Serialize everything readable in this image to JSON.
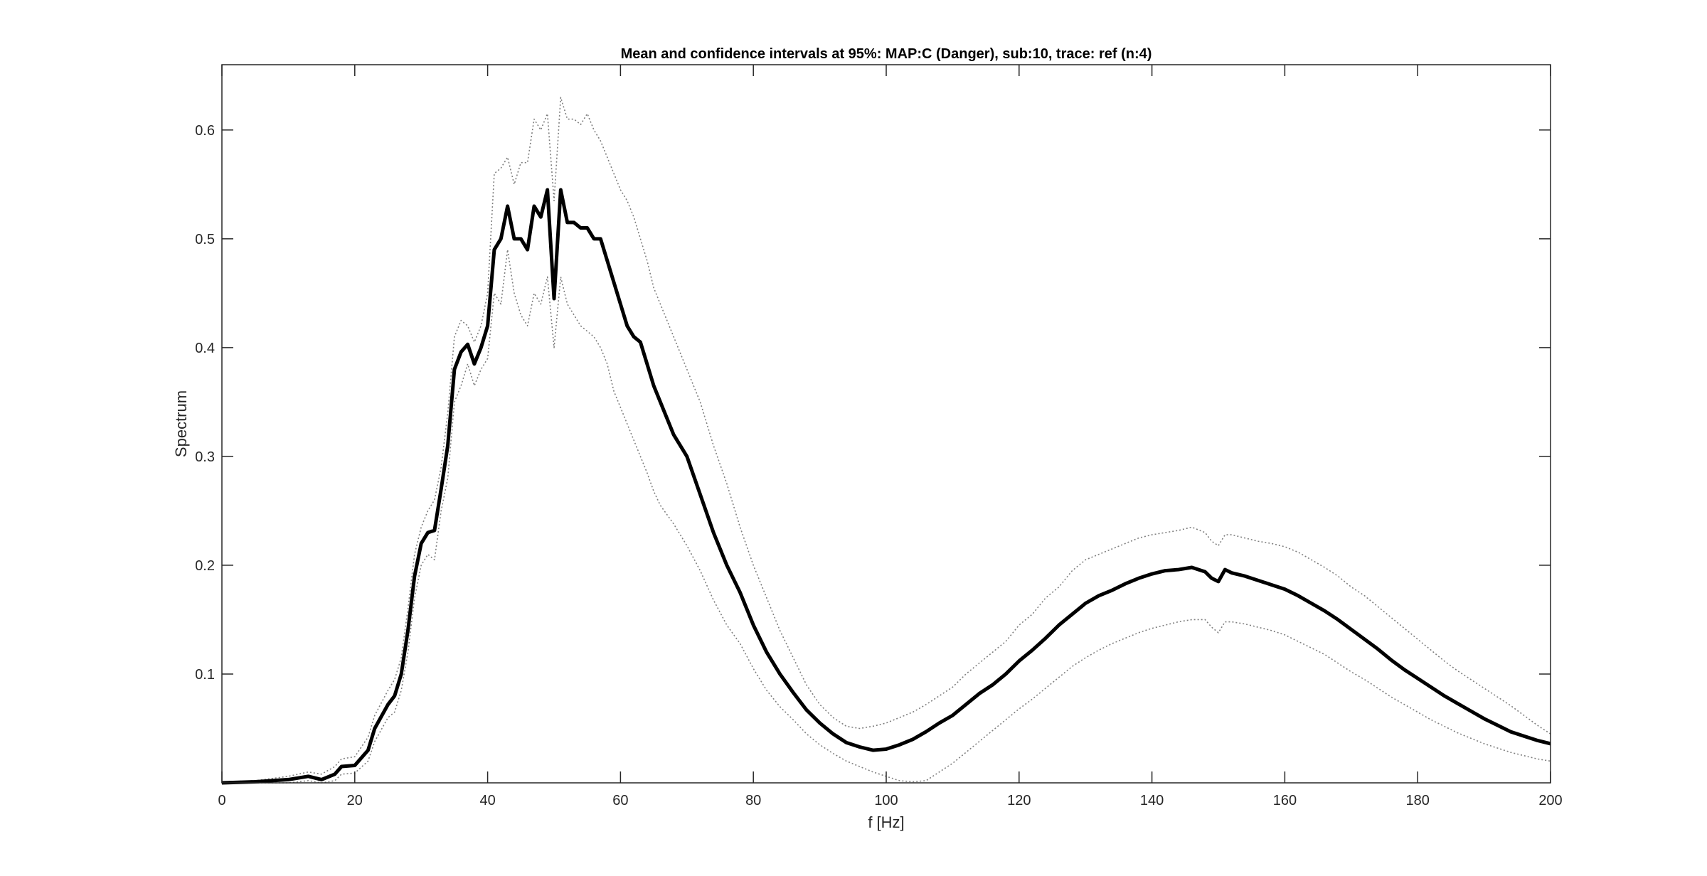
{
  "chart_data": {
    "type": "line",
    "title": "Mean and confidence intervals at 95%: MAP:C (Danger), sub:10, trace: ref (n:4)",
    "xlabel": "f [Hz]",
    "ylabel": "Spectrum",
    "xlim": [
      0,
      200
    ],
    "ylim": [
      0,
      0.66
    ],
    "x_ticks": [
      0,
      20,
      40,
      60,
      80,
      100,
      120,
      140,
      160,
      180,
      200
    ],
    "y_ticks": [
      0.1,
      0.2,
      0.3,
      0.4,
      0.5,
      0.6
    ],
    "x_tick_labels": [
      "0",
      "20",
      "40",
      "60",
      "80",
      "100",
      "120",
      "140",
      "160",
      "180",
      "200"
    ],
    "y_tick_labels": [
      "0.1",
      "0.2",
      "0.3",
      "0.4",
      "0.5",
      "0.6"
    ],
    "grid": false,
    "box": true,
    "x": [
      0,
      5,
      10,
      13,
      15,
      17,
      18,
      20,
      22,
      23,
      25,
      26,
      27,
      28,
      29,
      30,
      31,
      32,
      33,
      34,
      35,
      36,
      37,
      38,
      39,
      40,
      41,
      42,
      43,
      44,
      45,
      46,
      47,
      48,
      49,
      50,
      51,
      52,
      53,
      54,
      55,
      56,
      57,
      58,
      59,
      60,
      61,
      62,
      63,
      64,
      65,
      66,
      68,
      70,
      72,
      74,
      76,
      78,
      80,
      82,
      84,
      86,
      88,
      90,
      92,
      94,
      96,
      98,
      100,
      102,
      104,
      106,
      108,
      110,
      112,
      114,
      116,
      118,
      120,
      122,
      124,
      126,
      128,
      130,
      132,
      134,
      136,
      138,
      140,
      142,
      144,
      146,
      148,
      149,
      150,
      151,
      152,
      154,
      156,
      158,
      160,
      162,
      164,
      166,
      168,
      170,
      172,
      174,
      176,
      178,
      180,
      182,
      184,
      186,
      188,
      190,
      192,
      194,
      196,
      198,
      200
    ],
    "series": [
      {
        "values": [
          0.0,
          0.001,
          0.003,
          0.006,
          0.003,
          0.008,
          0.015,
          0.016,
          0.03,
          0.05,
          0.072,
          0.08,
          0.1,
          0.14,
          0.19,
          0.22,
          0.23,
          0.232,
          0.27,
          0.31,
          0.38,
          0.396,
          0.403,
          0.385,
          0.4,
          0.42,
          0.49,
          0.5,
          0.53,
          0.5,
          0.5,
          0.49,
          0.53,
          0.52,
          0.545,
          0.445,
          0.545,
          0.515,
          0.515,
          0.51,
          0.51,
          0.5,
          0.5,
          0.48,
          0.46,
          0.44,
          0.42,
          0.41,
          0.405,
          0.385,
          0.365,
          0.35,
          0.32,
          0.3,
          0.265,
          0.23,
          0.2,
          0.175,
          0.145,
          0.12,
          0.1,
          0.083,
          0.067,
          0.055,
          0.045,
          0.037,
          0.033,
          0.03,
          0.031,
          0.035,
          0.04,
          0.047,
          0.055,
          0.062,
          0.072,
          0.082,
          0.09,
          0.1,
          0.112,
          0.122,
          0.133,
          0.145,
          0.155,
          0.165,
          0.172,
          0.177,
          0.183,
          0.188,
          0.192,
          0.195,
          0.196,
          0.198,
          0.194,
          0.188,
          0.185,
          0.196,
          0.193,
          0.19,
          0.186,
          0.182,
          0.178,
          0.172,
          0.165,
          0.158,
          0.15,
          0.141,
          0.132,
          0.123,
          0.113,
          0.104,
          0.096,
          0.088,
          0.08,
          0.073,
          0.066,
          0.059,
          0.053,
          0.047,
          0.043,
          0.039,
          0.036
        ]
      },
      {
        "values": [
          0.001,
          0.002,
          0.006,
          0.01,
          0.008,
          0.015,
          0.022,
          0.024,
          0.042,
          0.062,
          0.085,
          0.095,
          0.115,
          0.16,
          0.21,
          0.235,
          0.25,
          0.26,
          0.29,
          0.34,
          0.41,
          0.425,
          0.42,
          0.405,
          0.42,
          0.45,
          0.56,
          0.565,
          0.575,
          0.55,
          0.57,
          0.57,
          0.61,
          0.6,
          0.615,
          0.535,
          0.63,
          0.61,
          0.61,
          0.605,
          0.615,
          0.6,
          0.59,
          0.575,
          0.56,
          0.545,
          0.535,
          0.52,
          0.5,
          0.48,
          0.455,
          0.44,
          0.41,
          0.38,
          0.35,
          0.31,
          0.275,
          0.235,
          0.2,
          0.17,
          0.14,
          0.115,
          0.09,
          0.072,
          0.06,
          0.052,
          0.05,
          0.052,
          0.055,
          0.06,
          0.065,
          0.072,
          0.08,
          0.088,
          0.1,
          0.11,
          0.12,
          0.13,
          0.145,
          0.155,
          0.17,
          0.18,
          0.195,
          0.205,
          0.21,
          0.215,
          0.22,
          0.225,
          0.228,
          0.23,
          0.232,
          0.235,
          0.23,
          0.222,
          0.218,
          0.228,
          0.228,
          0.225,
          0.222,
          0.22,
          0.217,
          0.212,
          0.205,
          0.198,
          0.19,
          0.18,
          0.172,
          0.162,
          0.152,
          0.142,
          0.132,
          0.122,
          0.112,
          0.103,
          0.095,
          0.087,
          0.079,
          0.071,
          0.062,
          0.053,
          0.045
        ]
      },
      {
        "values": [
          0.0,
          0.0,
          0.0,
          0.002,
          0.0,
          0.002,
          0.008,
          0.009,
          0.02,
          0.038,
          0.06,
          0.065,
          0.085,
          0.12,
          0.17,
          0.2,
          0.21,
          0.205,
          0.25,
          0.28,
          0.35,
          0.365,
          0.385,
          0.365,
          0.38,
          0.39,
          0.45,
          0.44,
          0.49,
          0.45,
          0.43,
          0.42,
          0.45,
          0.44,
          0.465,
          0.4,
          0.465,
          0.44,
          0.43,
          0.42,
          0.415,
          0.41,
          0.4,
          0.385,
          0.36,
          0.345,
          0.33,
          0.315,
          0.3,
          0.285,
          0.268,
          0.255,
          0.238,
          0.218,
          0.195,
          0.168,
          0.145,
          0.128,
          0.105,
          0.085,
          0.07,
          0.058,
          0.045,
          0.035,
          0.027,
          0.02,
          0.015,
          0.01,
          0.006,
          0.002,
          0.001,
          0.002,
          0.01,
          0.018,
          0.028,
          0.038,
          0.048,
          0.058,
          0.068,
          0.077,
          0.087,
          0.097,
          0.107,
          0.115,
          0.122,
          0.128,
          0.133,
          0.138,
          0.142,
          0.145,
          0.148,
          0.15,
          0.15,
          0.143,
          0.138,
          0.148,
          0.148,
          0.146,
          0.143,
          0.14,
          0.136,
          0.13,
          0.124,
          0.118,
          0.11,
          0.102,
          0.095,
          0.087,
          0.079,
          0.072,
          0.065,
          0.058,
          0.052,
          0.046,
          0.041,
          0.036,
          0.032,
          0.028,
          0.025,
          0.022,
          0.02
        ]
      }
    ],
    "styles": [
      {
        "color": "#000000",
        "dash": "solid"
      },
      {
        "color": "#7f7f7f",
        "dash": "dotted"
      },
      {
        "color": "#7f7f7f",
        "dash": "dotted"
      }
    ]
  }
}
